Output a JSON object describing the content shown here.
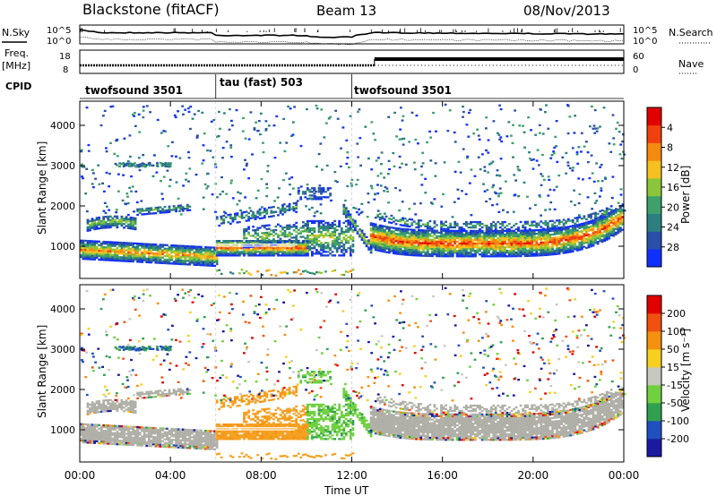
{
  "header": {
    "station": "Blackstone (fitACF)",
    "beam": "Beam 13",
    "date": "08/Nov/2013"
  },
  "left_labels": {
    "nsky": "N.Sky",
    "freq": "Freq.",
    "freq_unit": "[MHz]",
    "cpid": "CPID"
  },
  "right_labels": {
    "nsearch": "N.Search",
    "nave": "Nave"
  },
  "axis_ticks": {
    "noise_left": [
      "10^5",
      "10^0"
    ],
    "noise_right": [
      "10^5",
      "10^0"
    ],
    "freq_left": [
      "18",
      "8"
    ],
    "nave_right": [
      "60",
      "0"
    ]
  },
  "cpid_segments": [
    {
      "label": "twofsound 3501",
      "start_h": 0,
      "end_h": 6
    },
    {
      "label": "tau (fast) 503",
      "start_h": 6,
      "end_h": 12
    },
    {
      "label": "twofsound 3501",
      "start_h": 12,
      "end_h": 24
    }
  ],
  "chart_data": [
    {
      "type": "heatmap",
      "name": "power",
      "ylabel": "Slant Range [km]",
      "xlabel": "Time UT",
      "xlim": [
        0,
        24
      ],
      "ylim": [
        200,
        4600
      ],
      "xticks": [
        "00:00",
        "04:00",
        "08:00",
        "12:00",
        "16:00",
        "20:00",
        "00:00"
      ],
      "yticks": [
        1000,
        2000,
        3000,
        4000
      ],
      "colorbar": {
        "label": "Power [dB]",
        "ticks": [
          "4",
          "8",
          "12",
          "16",
          "20",
          "24",
          "28"
        ],
        "colors": [
          "#1030ff",
          "#2a4fa8",
          "#2d7f7f",
          "#3ea06a",
          "#8cc53a",
          "#f5c020",
          "#f58a10",
          "#f04010",
          "#e00000"
        ]
      }
    },
    {
      "type": "heatmap",
      "name": "velocity",
      "ylabel": "Slant Range [km]",
      "xlabel": "Time UT",
      "xlim": [
        0,
        24
      ],
      "ylim": [
        200,
        4600
      ],
      "xticks": [
        "00:00",
        "04:00",
        "08:00",
        "12:00",
        "16:00",
        "20:00",
        "00:00"
      ],
      "yticks": [
        1000,
        2000,
        3000,
        4000
      ],
      "colorbar": {
        "label": "Velocity [m s⁻¹]",
        "ticks": [
          "200",
          "100",
          "50",
          "15",
          "-15",
          "-50",
          "-100",
          "-200"
        ],
        "colors": [
          "#1a1aa0",
          "#2050c0",
          "#30a050",
          "#70d040",
          "#c8c8c0",
          "#f5d020",
          "#f59010",
          "#f05010",
          "#e00000"
        ]
      }
    }
  ],
  "colors": {
    "ground_scatter": "#b0b0a8",
    "scatter_orange": "#f5a020"
  }
}
